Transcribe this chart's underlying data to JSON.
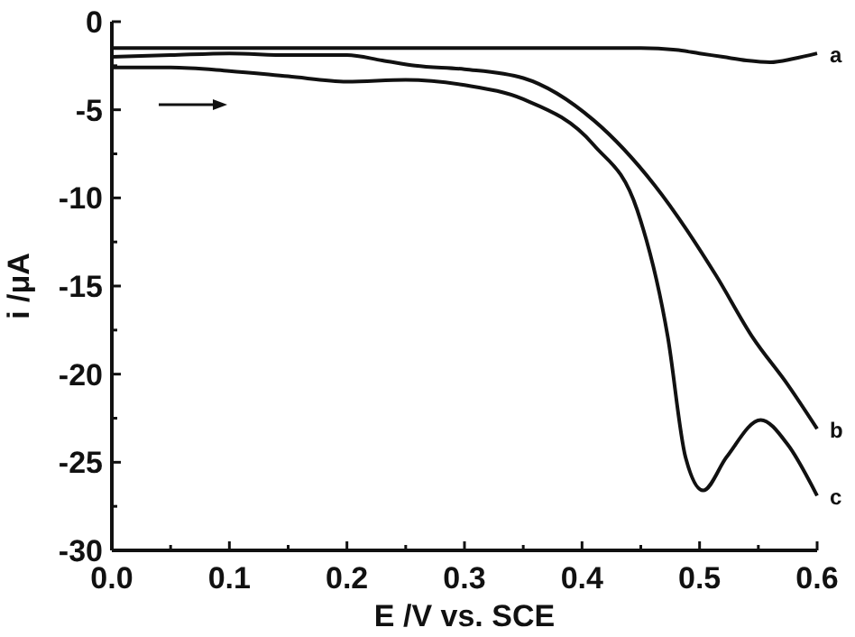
{
  "chart_data": {
    "type": "line",
    "xlabel": "E /V vs. SCE",
    "ylabel": "i /μA",
    "xlim": [
      0,
      0.6
    ],
    "ylim": [
      -30,
      0
    ],
    "xticks": [
      {
        "value": 0,
        "label": "0.0"
      },
      {
        "value": 0.05,
        "label": null
      },
      {
        "value": 0.1,
        "label": "0.1"
      },
      {
        "value": 0.15,
        "label": null
      },
      {
        "value": 0.2,
        "label": "0.2"
      },
      {
        "value": 0.25,
        "label": null
      },
      {
        "value": 0.3,
        "label": "0.3"
      },
      {
        "value": 0.35,
        "label": null
      },
      {
        "value": 0.4,
        "label": "0.4"
      },
      {
        "value": 0.45,
        "label": null
      },
      {
        "value": 0.5,
        "label": "0.5"
      },
      {
        "value": 0.55,
        "label": null
      },
      {
        "value": 0.6,
        "label": "0.6"
      }
    ],
    "yticks": [
      {
        "value": 0,
        "label": "0"
      },
      {
        "value": -2.5,
        "label": null
      },
      -5,
      {
        "value": -7.5,
        "label": null
      },
      -10,
      {
        "value": -12.5,
        "label": null
      },
      -15,
      {
        "value": -17.5,
        "label": null
      },
      -20,
      {
        "value": -22.5,
        "label": null
      },
      -25,
      {
        "value": -27.5,
        "label": null
      },
      -30
    ],
    "grid": false,
    "series": [
      {
        "name": "a",
        "color": "#111111",
        "x": [
          0,
          0.1,
          0.2,
          0.3,
          0.4,
          0.45,
          0.48,
          0.5,
          0.52,
          0.54,
          0.56,
          0.58,
          0.6
        ],
        "values": [
          -1.5,
          -1.5,
          -1.5,
          -1.5,
          -1.5,
          -1.5,
          -1.6,
          -1.8,
          -2.0,
          -2.2,
          -2.3,
          -2.1,
          -1.8
        ]
      },
      {
        "name": "b",
        "color": "#111111",
        "x": [
          0,
          0.05,
          0.1,
          0.15,
          0.2,
          0.23,
          0.258,
          0.3,
          0.35,
          0.41,
          0.462,
          0.514,
          0.545,
          0.575,
          0.6
        ],
        "values": [
          -2.0,
          -1.9,
          -1.8,
          -1.9,
          -1.9,
          -2.2,
          -2.5,
          -2.7,
          -3.2,
          -5.6,
          -9.3,
          -14.4,
          -17.9,
          -20.6,
          -23.1
        ]
      },
      {
        "name": "c",
        "color": "#111111",
        "x": [
          0,
          0.05,
          0.1,
          0.15,
          0.2,
          0.25,
          0.3,
          0.35,
          0.41,
          0.447,
          0.473,
          0.488,
          0.503,
          0.523,
          0.552,
          0.575,
          0.6
        ],
        "values": [
          -2.6,
          -2.6,
          -2.8,
          -3.1,
          -3.4,
          -3.3,
          -3.6,
          -4.4,
          -7.0,
          -10.7,
          -17.9,
          -24.7,
          -26.6,
          -24.7,
          -22.6,
          -24.0,
          -26.9
        ]
      }
    ]
  }
}
